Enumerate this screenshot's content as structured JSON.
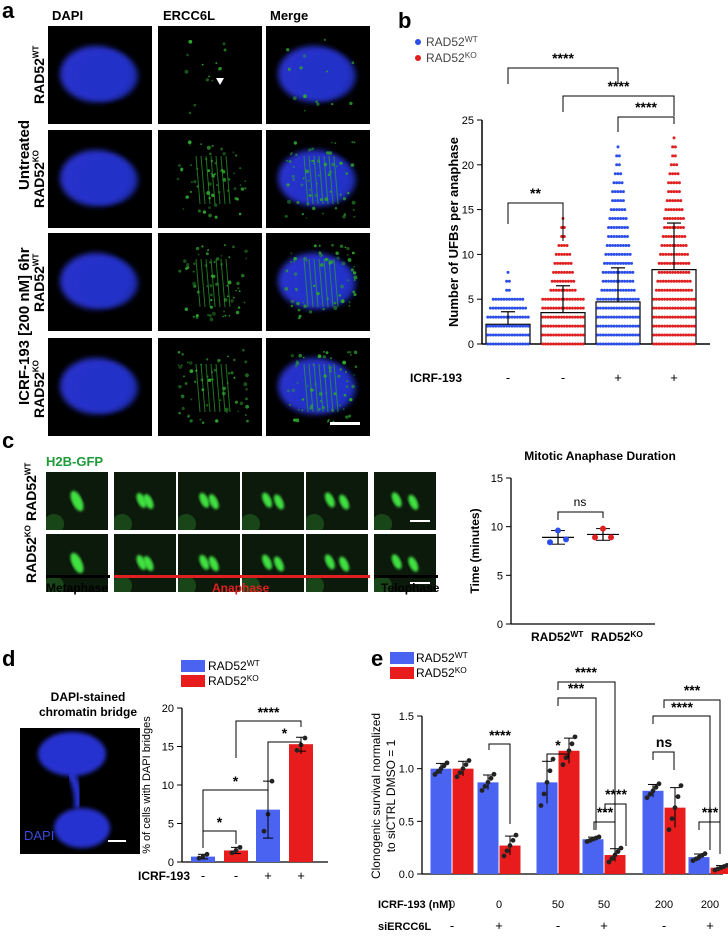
{
  "panels": {
    "a": "a",
    "b": "b",
    "c": "c",
    "d": "d",
    "e": "e"
  },
  "panel_a": {
    "col_headers": [
      "DAPI",
      "ERCC6L",
      "Merge"
    ],
    "row_labels": [
      {
        "main": "RAD52",
        "sup": "WT"
      },
      {
        "main": "RAD52",
        "sup": "KO"
      },
      {
        "main": "RAD52",
        "sup": "WT"
      },
      {
        "main": "RAD52",
        "sup": "KO"
      }
    ],
    "group_labels": [
      "Untreated",
      "ICRF-193 [200 nM] 6hr"
    ],
    "colors": {
      "dapi": "#2b36d6",
      "ercc6l": "#2ea52e",
      "header_dapi": "#3a3ad8",
      "header_ercc6l": "#1f9a3a"
    }
  },
  "panel_b": {
    "legend": [
      {
        "name": "RAD52",
        "sup": "WT",
        "color": "#2b4de8"
      },
      {
        "name": "RAD52",
        "sup": "KO",
        "color": "#e02020"
      }
    ],
    "ylabel": "Number of UFBs per anaphase",
    "yticks": [
      "0",
      "5",
      "10",
      "15",
      "20",
      "25"
    ],
    "treatment_label": "ICRF-193",
    "treatment_signs": [
      "-",
      "-",
      "+",
      "+"
    ],
    "significance": [
      "****",
      "****",
      "****",
      "**"
    ]
  },
  "panel_c": {
    "header": "H2B-GFP",
    "row_labels": [
      {
        "main": "RAD52",
        "sup": "WT"
      },
      {
        "main": "RAD52",
        "sup": "KO"
      }
    ],
    "phases": [
      "Metaphase",
      "Anaphase",
      "Telophase"
    ],
    "chart_title": "Mitotic Anaphase Duration",
    "ylabel": "Time (minutes)",
    "yticks": [
      "0",
      "5",
      "10",
      "15"
    ],
    "xlabels": [
      {
        "main": "RAD52",
        "sup": "WT"
      },
      {
        "main": "RAD52",
        "sup": "KO"
      }
    ],
    "sig": "ns"
  },
  "panel_d": {
    "image_title": [
      "DAPI-stained",
      "chromatin bridge"
    ],
    "image_label": "DAPI",
    "legend": [
      {
        "name": "RAD52",
        "sup": "WT",
        "color": "#4a63f0"
      },
      {
        "name": "RAD52",
        "sup": "KO",
        "color": "#e81c1c"
      }
    ],
    "ylabel": "% of cells with DAPI bridges",
    "yticks": [
      "0",
      "5",
      "10",
      "15",
      "20"
    ],
    "treatment_label": "ICRF-193",
    "treatment_signs": [
      "-",
      "-",
      "+",
      "+"
    ],
    "significance": [
      "****",
      "*",
      "*",
      "*"
    ]
  },
  "panel_e": {
    "legend": [
      {
        "name": "RAD52",
        "sup": "WT",
        "color": "#4a63f0"
      },
      {
        "name": "RAD52",
        "sup": "KO",
        "color": "#e81c1c"
      }
    ],
    "ylabel": [
      "Clonogenic survival normalized",
      "to siCTRL DMSO = 1"
    ],
    "yticks": [
      "0.0",
      "0.5",
      "1.0",
      "1.5"
    ],
    "row1_label": "ICRF-193 (nM)",
    "row1_values": [
      "0",
      "0",
      "50",
      "50",
      "200",
      "200"
    ],
    "row2_label": "siERCC6L",
    "row2_values": [
      "-",
      "+",
      "-",
      "+",
      "-",
      "+"
    ],
    "significance": [
      "****",
      "****",
      "***",
      "*",
      "****",
      "***",
      "****",
      "ns",
      "***",
      "***"
    ]
  },
  "chart_data": [
    {
      "type": "bar",
      "panel": "b",
      "categories": [
        "RAD52 WT untreated",
        "RAD52 KO untreated",
        "RAD52 WT ICRF-193",
        "RAD52 KO ICRF-193"
      ],
      "values": [
        2.2,
        3.5,
        4.7,
        8.3
      ],
      "errors": [
        1.4,
        3.0,
        3.8,
        5.2
      ],
      "ylabel": "Number of UFBs per anaphase",
      "ylim": [
        0,
        25
      ]
    },
    {
      "type": "scatter",
      "panel": "c",
      "title": "Mitotic Anaphase Duration",
      "categories": [
        "RAD52 WT",
        "RAD52 KO"
      ],
      "means": [
        8.9,
        9.2
      ],
      "errors": [
        0.7,
        0.6
      ],
      "points": [
        [
          9.6,
          8.4,
          8.7
        ],
        [
          9.8,
          8.9,
          8.9
        ]
      ],
      "ylabel": "Time (minutes)",
      "ylim": [
        0,
        15
      ]
    },
    {
      "type": "bar",
      "panel": "d",
      "categories": [
        "RAD52 WT -",
        "RAD52 KO -",
        "RAD52 WT +",
        "RAD52 KO +"
      ],
      "values": [
        0.7,
        1.5,
        6.8,
        15.3
      ],
      "errors": [
        0.3,
        0.4,
        3.7,
        0.9
      ],
      "points": [
        [
          0.5,
          0.7,
          1.0
        ],
        [
          1.2,
          1.5,
          1.9
        ],
        [
          4.0,
          6.2,
          10.5
        ],
        [
          14.5,
          15.2,
          16.1
        ]
      ],
      "ylabel": "% of cells with DAPI bridges",
      "ylim": [
        0,
        20
      ]
    },
    {
      "type": "bar",
      "panel": "e",
      "categories": [
        "0 / -",
        "0 / +",
        "50 / -",
        "50 / +",
        "200 / -",
        "200 / +"
      ],
      "series": [
        {
          "name": "RAD52 WT",
          "values": [
            1.0,
            0.87,
            0.87,
            0.33,
            0.79,
            0.16
          ]
        },
        {
          "name": "RAD52 KO",
          "values": [
            1.0,
            0.27,
            1.17,
            0.18,
            0.63,
            0.06
          ]
        }
      ],
      "errors_wt": [
        0.05,
        0.07,
        0.2,
        0.02,
        0.06,
        0.03
      ],
      "errors_ko": [
        0.07,
        0.09,
        0.12,
        0.06,
        0.19,
        0.02
      ],
      "ylabel": "Clonogenic survival normalized to siCTRL DMSO = 1",
      "ylim": [
        0,
        1.5
      ]
    }
  ]
}
